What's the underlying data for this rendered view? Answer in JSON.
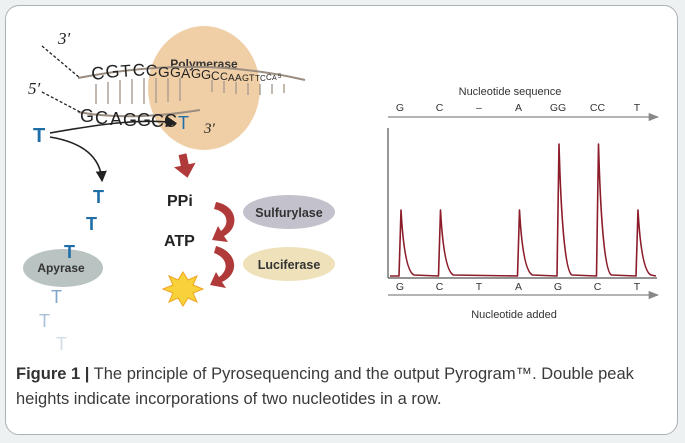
{
  "dna": {
    "top_strand_end": "3′",
    "bottom_strand_end": "5′",
    "template_letters": [
      "C",
      "G",
      "T",
      "C",
      "C",
      "G",
      "G",
      "A",
      "G",
      "G",
      "C",
      "C",
      "A",
      "A",
      "G",
      "T",
      "T",
      "C",
      "C",
      "A",
      "5"
    ],
    "primer_letters": [
      "G",
      "C",
      "A",
      "G",
      "G",
      "C",
      "C",
      "T"
    ],
    "primer_end": "3′"
  },
  "labels": {
    "polymerase": "Polymerase",
    "ppi": "PPi",
    "atp": "ATP",
    "sulfurylase": "Sulfurylase",
    "luciferase": "Luciferase",
    "apyrase": "Apyrase",
    "nucleotide": "T"
  },
  "colors": {
    "polymerase": "#f0cfa6",
    "sulfurylase": "#c3c1cb",
    "luciferase": "#efe2bb",
    "apyrase": "#b9c4c2",
    "arrow_red": "#b03a3a",
    "nucleotide_blue": "#1f6ea8",
    "trace": "#8b1c2a",
    "light_flash": "#f7d23a"
  },
  "chart_data": {
    "type": "line",
    "top_axis_label": "Nucleotide sequence",
    "top_ticks": [
      "G",
      "C",
      "–",
      "A",
      "GG",
      "CC",
      "T"
    ],
    "bottom_axis_label": "Nucleotide added",
    "bottom_ticks": [
      "G",
      "C",
      "T",
      "A",
      "G",
      "C",
      "T"
    ],
    "series": [
      {
        "values": [
          1,
          1,
          0,
          1,
          2,
          2,
          1
        ]
      }
    ]
  },
  "caption": {
    "lead": "Figure 1 |",
    "text": " The principle of Pyrosequencing and the output Pyrogram™. Double peak heights indicate incorporations of two nucleotides in a row."
  }
}
